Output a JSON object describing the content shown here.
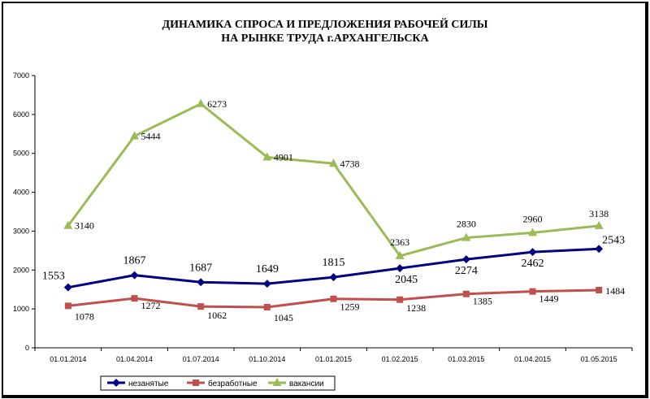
{
  "chart_data": {
    "type": "line",
    "title": [
      "ДИНАМИКА СПРОСА И ПРЕДЛОЖЕНИЯ РАБОЧЕЙ СИЛЫ",
      "НА РЫНКЕ ТРУДА г.АРХАНГЕЛЬСКА"
    ],
    "categories": [
      "01.01.2014",
      "01.04.2014",
      "01.07.2014",
      "01.10.2014",
      "01.01.2015",
      "01.02.2015",
      "01.03.2015",
      "01.04.2015",
      "01.05.2015"
    ],
    "ylim": [
      0,
      7000
    ],
    "yticks": [
      0,
      1000,
      2000,
      3000,
      4000,
      5000,
      6000,
      7000
    ],
    "grid": "none",
    "legend": "bottom",
    "series": [
      {
        "name": "незанятые",
        "color": "#000080",
        "marker": "diamond",
        "values": [
          1553,
          1867,
          1687,
          1649,
          1815,
          2045,
          2274,
          2462,
          2543
        ]
      },
      {
        "name": "безработные",
        "color": "#c0504d",
        "marker": "square",
        "values": [
          1078,
          1272,
          1062,
          1045,
          1259,
          1238,
          1385,
          1449,
          1484
        ]
      },
      {
        "name": "вакансии",
        "color": "#9bbb59",
        "marker": "triangle",
        "values": [
          3140,
          5444,
          6273,
          4901,
          4738,
          2363,
          2830,
          2960,
          3138
        ]
      }
    ]
  }
}
